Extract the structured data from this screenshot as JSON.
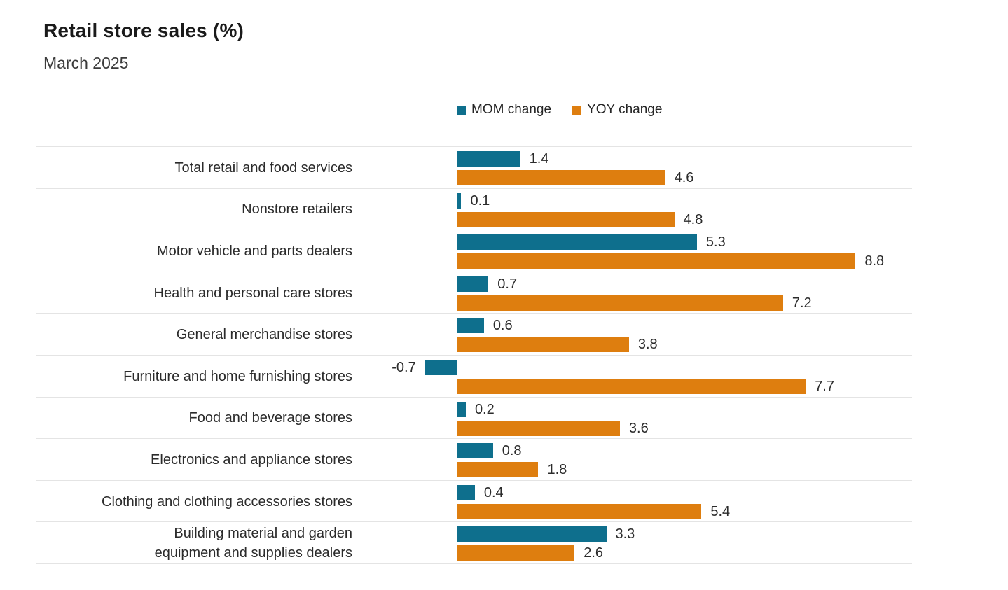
{
  "header": {
    "title": "Retail store sales (%)",
    "subtitle": "March 2025"
  },
  "colors": {
    "mom": "#0e6f8d",
    "yoy": "#de7e0f",
    "gridline": "#e4e4e4",
    "text": "#2b2b2b"
  },
  "chart_data": {
    "type": "bar",
    "orientation": "horizontal",
    "title": "Retail store sales (%)",
    "subtitle": "March 2025",
    "legend_position": "top",
    "grid": "row separators on, horizontal light gray",
    "xlim": [
      -1,
      10
    ],
    "value_labels": "one decimal, outside bar end",
    "categories": [
      "Total retail and food services",
      "Nonstore retailers",
      "Motor vehicle and parts dealers",
      "Health and personal care stores",
      "General merchandise stores",
      "Furniture and home furnishing stores",
      "Food and beverage stores",
      "Electronics and appliance stores",
      "Clothing and clothing accessories stores",
      "Building material and garden\nequipment and supplies dealers"
    ],
    "series": [
      {
        "name": "MOM change",
        "color": "#0e6f8d",
        "values": [
          1.4,
          0.1,
          5.3,
          0.7,
          0.6,
          -0.7,
          0.2,
          0.8,
          0.4,
          3.3
        ]
      },
      {
        "name": "YOY change",
        "color": "#de7e0f",
        "values": [
          4.6,
          4.8,
          8.8,
          7.2,
          3.8,
          7.7,
          3.6,
          1.8,
          5.4,
          2.6
        ]
      }
    ]
  }
}
